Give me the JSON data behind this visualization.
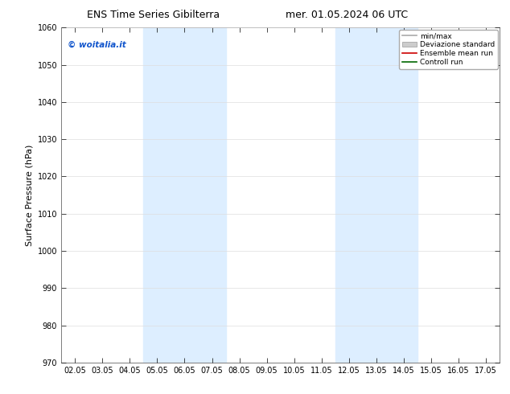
{
  "title_left": "ENS Time Series Gibilterra",
  "title_right": "mer. 01.05.2024 06 UTC",
  "ylabel": "Surface Pressure (hPa)",
  "ylim": [
    970,
    1060
  ],
  "yticks": [
    970,
    980,
    990,
    1000,
    1010,
    1020,
    1030,
    1040,
    1050,
    1060
  ],
  "xtick_labels": [
    "02.05",
    "03.05",
    "04.05",
    "05.05",
    "06.05",
    "07.05",
    "08.05",
    "09.05",
    "10.05",
    "11.05",
    "12.05",
    "13.05",
    "14.05",
    "15.05",
    "16.05",
    "17.05"
  ],
  "shaded_bands": [
    {
      "xstart": 3,
      "xend": 5,
      "color": "#ddeeff"
    },
    {
      "xstart": 10,
      "xend": 12,
      "color": "#ddeeff"
    }
  ],
  "watermark": "© woitalia.it",
  "watermark_color": "#1155cc",
  "legend_items": [
    {
      "label": "min/max",
      "color": "#aaaaaa",
      "lw": 1.2,
      "linestyle": "-",
      "type": "line"
    },
    {
      "label": "Deviazione standard",
      "color": "#cccccc",
      "lw": 8,
      "linestyle": "-",
      "type": "patch"
    },
    {
      "label": "Ensemble mean run",
      "color": "#cc0000",
      "lw": 1.2,
      "linestyle": "-",
      "type": "line"
    },
    {
      "label": "Controll run",
      "color": "#006600",
      "lw": 1.2,
      "linestyle": "-",
      "type": "line"
    }
  ],
  "bg_color": "#ffffff",
  "plot_bg_color": "#ffffff",
  "grid_color": "#dddddd",
  "title_fontsize": 9,
  "tick_fontsize": 7,
  "ylabel_fontsize": 8
}
